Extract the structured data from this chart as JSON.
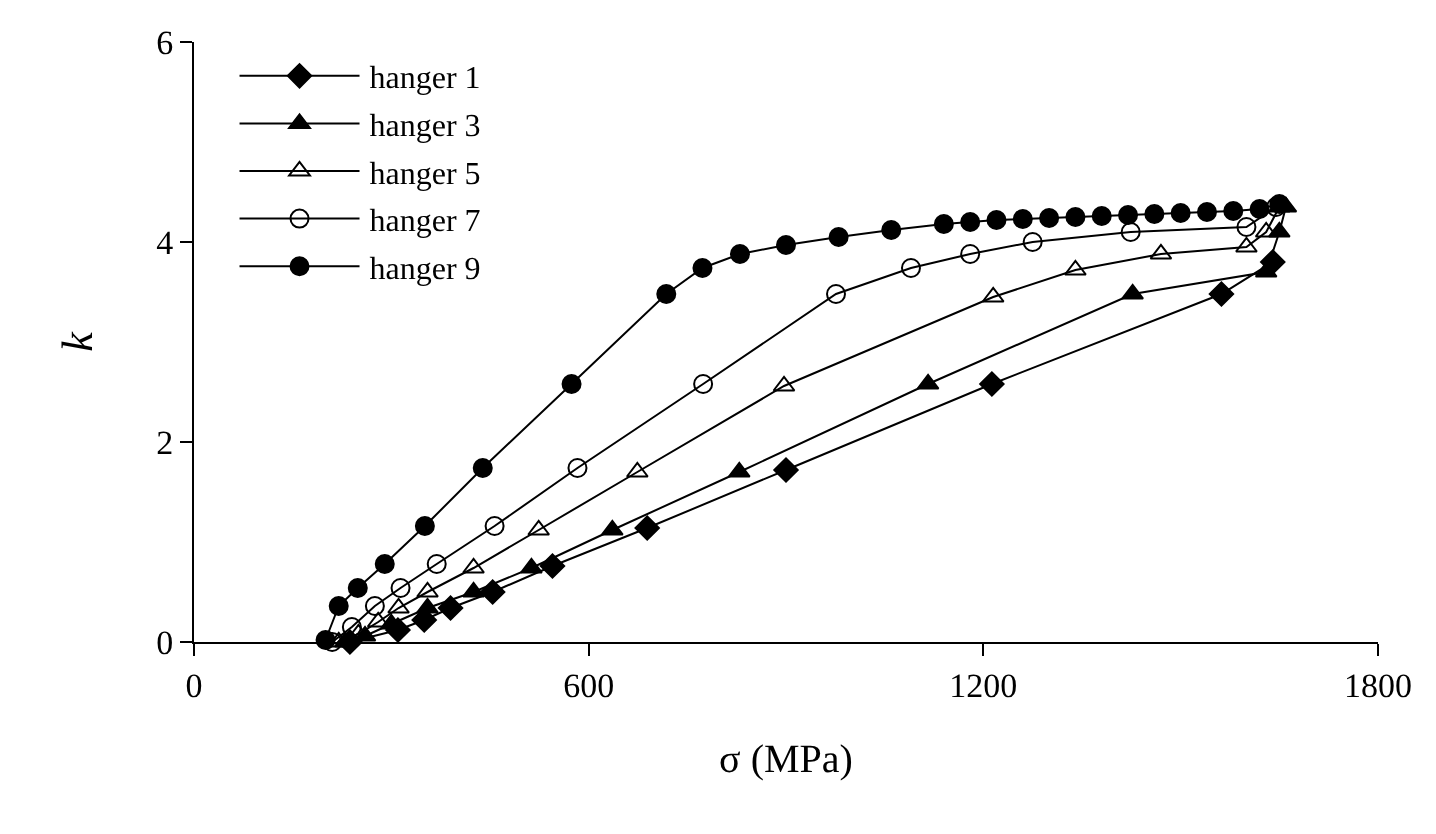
{
  "chart_data": {
    "type": "line",
    "xlabel": "σ (MPa)",
    "ylabel": "k",
    "xlim": [
      0,
      1800
    ],
    "xticks": [
      0,
      600,
      1200,
      1800
    ],
    "ylim": [
      0,
      6
    ],
    "yticks": [
      0,
      2,
      4,
      6
    ],
    "grid": false,
    "legend": "top left",
    "line_style": "solid",
    "series": [
      {
        "name": "hanger 1",
        "color": "#000000",
        "marker": "diamond",
        "x": [
          237,
          310,
          350,
          390,
          454,
          545,
          689,
          900,
          1213,
          1562,
          1640
        ],
        "values": [
          0,
          0.12,
          0.22,
          0.34,
          0.5,
          0.76,
          1.14,
          1.72,
          2.58,
          3.48,
          3.8
        ]
      },
      {
        "name": "hanger 3",
        "color": "#000000",
        "marker": "triangle",
        "x": [
          230,
          260,
          300,
          355,
          425,
          513,
          636,
          829,
          1116,
          1427,
          1630,
          1650,
          1660
        ],
        "values": [
          0,
          0.06,
          0.18,
          0.34,
          0.5,
          0.74,
          1.12,
          1.7,
          2.58,
          3.48,
          3.7,
          4.1,
          4.35
        ]
      },
      {
        "name": "hanger 5",
        "color": "#000000",
        "marker": "triangle-open",
        "x": [
          220,
          250,
          280,
          311,
          355,
          425,
          524,
          674,
          897,
          1215,
          1340,
          1470,
          1600,
          1630,
          1650
        ],
        "values": [
          0,
          0.08,
          0.2,
          0.34,
          0.5,
          0.74,
          1.12,
          1.7,
          2.56,
          3.45,
          3.72,
          3.88,
          3.95,
          4.1,
          4.35
        ]
      },
      {
        "name": "hanger 7",
        "color": "#000000",
        "marker": "circle-open",
        "x": [
          210,
          240,
          275,
          314,
          369,
          457,
          583,
          774,
          976,
          1090,
          1180,
          1275,
          1424,
          1600,
          1645
        ],
        "values": [
          0,
          0.15,
          0.36,
          0.54,
          0.78,
          1.16,
          1.74,
          2.58,
          3.48,
          3.74,
          3.88,
          4.0,
          4.1,
          4.15,
          4.35
        ]
      },
      {
        "name": "hanger 9",
        "color": "#000000",
        "marker": "circle",
        "x": [
          200,
          220,
          249,
          290,
          351,
          439,
          574,
          718,
          773,
          830,
          900,
          980,
          1060,
          1140,
          1180,
          1220,
          1260,
          1300,
          1340,
          1380,
          1420,
          1460,
          1500,
          1540,
          1580,
          1620,
          1650
        ],
        "values": [
          0.02,
          0.36,
          0.54,
          0.78,
          1.16,
          1.74,
          2.58,
          3.48,
          3.74,
          3.88,
          3.97,
          4.05,
          4.12,
          4.18,
          4.2,
          4.22,
          4.23,
          4.24,
          4.25,
          4.26,
          4.27,
          4.28,
          4.29,
          4.3,
          4.31,
          4.33,
          4.38
        ]
      }
    ]
  }
}
